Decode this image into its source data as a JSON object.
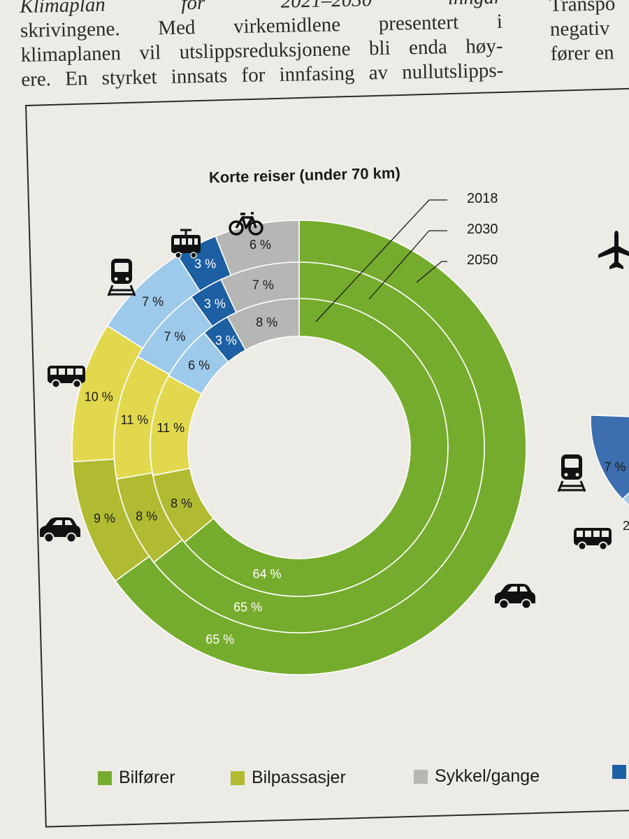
{
  "page_text": {
    "left_lines": [
      "Klimaplan for 2021–2030 inngår",
      "skrivingene. Med virkemidlene presentert i",
      "klimaplanen vil utslippsreduksjonene bli enda høy-",
      "ere. En styrket innsats for innfasing av nullutslipps-"
    ],
    "right_lines": [
      "Transpo",
      "negativ",
      "fører en"
    ]
  },
  "colors": {
    "bilforer": "#76ac2d",
    "bilpassasjer": "#b1bb32",
    "kollektiv_buss": "#e2d84d",
    "tog": "#9dc9ea",
    "trikk": "#1d5fa3",
    "sykkel_gange": "#b6b6b4",
    "right_chart_dark_blue": "#3d6eaf",
    "right_chart_light_blue": "#a6cbe9",
    "right_chart_yellow": "#e2d84d"
  },
  "icons": {
    "left": [
      "bicycle-icon",
      "tram-icon",
      "train-icon",
      "bus-icon",
      "car-icon",
      "car-icon"
    ],
    "right": [
      "airplane-icon",
      "train-icon",
      "bus-icon"
    ]
  },
  "chart_data": [
    {
      "type": "donut",
      "title": "Korte reiser (under 70 km)",
      "rings": [
        "2018",
        "2030",
        "2050"
      ],
      "ring_order": "outer-to-inner",
      "series": [
        {
          "name": "Bilfører",
          "values": [
            65,
            65,
            64
          ]
        },
        {
          "name": "Bilpassasjer",
          "values": [
            9,
            8,
            8
          ]
        },
        {
          "name": "",
          "values": [
            10,
            11,
            11
          ]
        },
        {
          "name": "",
          "values": [
            7,
            7,
            6
          ]
        },
        {
          "name": "",
          "values": [
            3,
            3,
            3
          ]
        },
        {
          "name": "Sykkel/gange",
          "values": [
            6,
            7,
            8
          ]
        }
      ],
      "value_labels": [
        [
          "65 %",
          "9 %",
          "10 %",
          "7 %",
          "3 %",
          "6 %"
        ],
        [
          "65 %",
          "8 %",
          "11 %",
          "7 %",
          "3 %",
          "7 %"
        ],
        [
          "64 %",
          "8 %",
          "11 %",
          "6 %",
          "3 %",
          "8 %"
        ]
      ],
      "legend": {
        "placement": "bottom",
        "items": [
          {
            "label": "Bilfører",
            "color": "#76ac2d"
          },
          {
            "label": "Bilpassasjer",
            "color": "#b1bb32"
          },
          {
            "label": "Sykkel/gange",
            "color": "#b6b6b4"
          },
          {
            "label": "",
            "color": "#1d5fa3"
          }
        ]
      }
    },
    {
      "type": "donut",
      "title": "",
      "partially_visible": true,
      "value_labels": [
        "7 %",
        "2"
      ]
    }
  ]
}
